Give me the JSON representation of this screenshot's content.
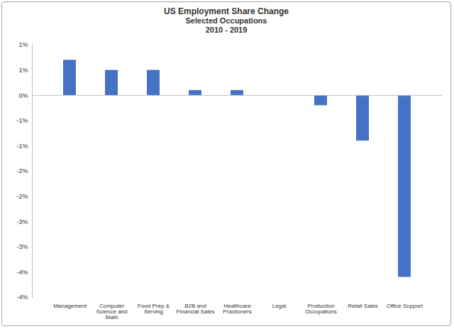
{
  "chart_data": {
    "type": "bar",
    "title": "US Employment Share Change",
    "subtitle": [
      "Selected Occupations",
      "2010 - 2019"
    ],
    "categories": [
      "Management",
      "Computer Science and Math",
      "Food Prep & Serving",
      "B2B and Financial Sales",
      "Healthcare Practioners",
      "Legal",
      "Production Occupations",
      "Retail Sales",
      "Office Support"
    ],
    "values": [
      0.7,
      0.5,
      0.5,
      0.1,
      0.1,
      0,
      -0.2,
      -0.9,
      -3.6
    ],
    "color": "#4472c4",
    "ylim": [
      -4,
      1
    ],
    "yticks": [
      {
        "value": 1,
        "label": "1%"
      },
      {
        "value": 0.5,
        "label": "1%"
      },
      {
        "value": 0,
        "label": "0%"
      },
      {
        "value": -0.5,
        "label": "-1%"
      },
      {
        "value": -1,
        "label": "-1%"
      },
      {
        "value": -1.5,
        "label": "-2%"
      },
      {
        "value": -2,
        "label": "-2%"
      },
      {
        "value": -2.5,
        "label": "-3%"
      },
      {
        "value": -3,
        "label": "-3%"
      },
      {
        "value": -3.5,
        "label": "-4%"
      },
      {
        "value": -4,
        "label": "-4%"
      }
    ],
    "grid": false
  }
}
